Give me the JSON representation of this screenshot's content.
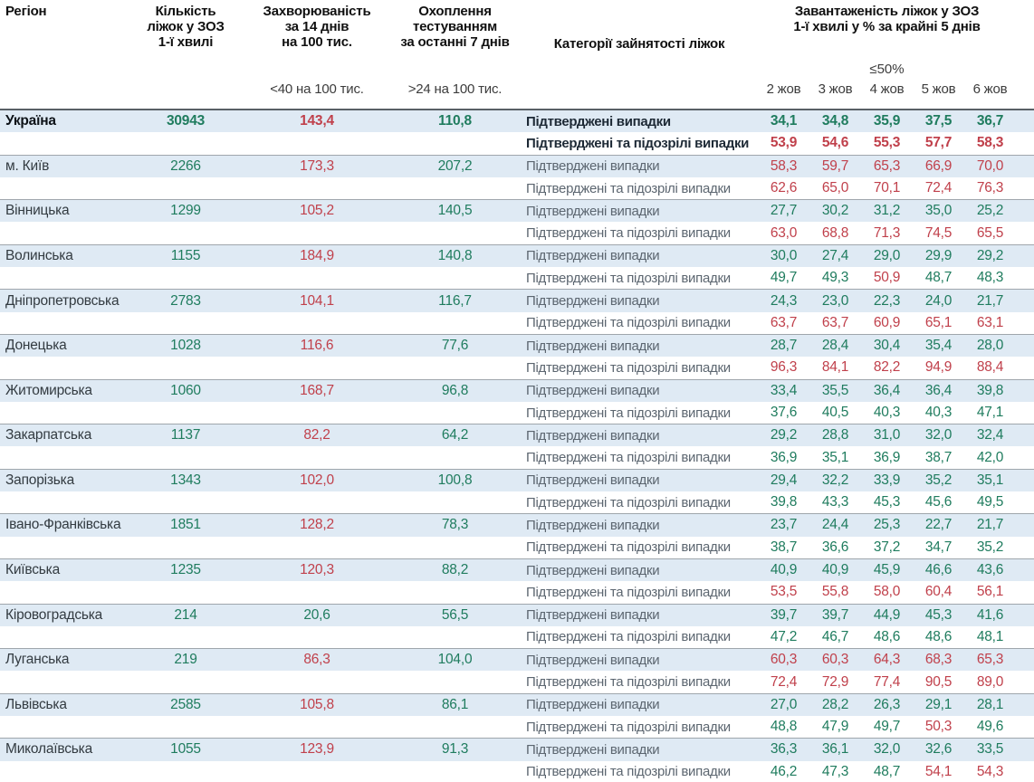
{
  "header": {
    "col_region": "Регіон",
    "col_beds_lines": [
      "Кількість",
      "ліжок у ЗОЗ",
      "1-ї хвилі"
    ],
    "col_incidence_lines": [
      "Захворюваність",
      "за 14 днів",
      "на 100 тис."
    ],
    "col_testing_lines": [
      "Охоплення",
      "тестуванням",
      "за останні 7 днів"
    ],
    "col_categories": "Категорії зайнятості ліжок",
    "col_occupancy_lines": [
      "Завантаженість ліжок у ЗОЗ",
      "1-ї хвилі у % за крайні 5 днів"
    ],
    "sub_incidence": "<40 на 100 тис.",
    "sub_testing": ">24 на 100 тис.",
    "occupancy_threshold_label": "≤50%",
    "dates": [
      "2 жов",
      "3 жов",
      "4 жов",
      "5 жов",
      "6 жов"
    ]
  },
  "category_labels": {
    "confirmed": "Підтверджені випадки",
    "suspected": "Підтверджені та підозрілі випадки"
  },
  "thresholds": {
    "incidence_green_below": 40,
    "testing_green_above": 24,
    "occupancy_red_above": 50
  },
  "colors": {
    "green": "#1f7c5e",
    "red": "#c0404b",
    "row_blue": "#dfeaf4",
    "label_gray": "#5c6670"
  },
  "rows": [
    {
      "region": "Україна",
      "bold": true,
      "beds": "30943",
      "incidence": "143,4",
      "testing": "110,8",
      "confirmed": [
        "34,1",
        "34,8",
        "35,9",
        "37,5",
        "36,7"
      ],
      "suspected": [
        "53,9",
        "54,6",
        "55,3",
        "57,7",
        "58,3"
      ]
    },
    {
      "region": "м. Київ",
      "bold": false,
      "beds": "2266",
      "incidence": "173,3",
      "testing": "207,2",
      "confirmed": [
        "58,3",
        "59,7",
        "65,3",
        "66,9",
        "70,0"
      ],
      "suspected": [
        "62,6",
        "65,0",
        "70,1",
        "72,4",
        "76,3"
      ]
    },
    {
      "region": "Вінницька",
      "bold": false,
      "beds": "1299",
      "incidence": "105,2",
      "testing": "140,5",
      "confirmed": [
        "27,7",
        "30,2",
        "31,2",
        "35,0",
        "25,2"
      ],
      "suspected": [
        "63,0",
        "68,8",
        "71,3",
        "74,5",
        "65,5"
      ]
    },
    {
      "region": "Волинська",
      "bold": false,
      "beds": "1155",
      "incidence": "184,9",
      "testing": "140,8",
      "confirmed": [
        "30,0",
        "27,4",
        "29,0",
        "29,9",
        "29,2"
      ],
      "suspected": [
        "49,7",
        "49,3",
        "50,9",
        "48,7",
        "48,3"
      ]
    },
    {
      "region": "Дніпропетровська",
      "bold": false,
      "beds": "2783",
      "incidence": "104,1",
      "testing": "116,7",
      "confirmed": [
        "24,3",
        "23,0",
        "22,3",
        "24,0",
        "21,7"
      ],
      "suspected": [
        "63,7",
        "63,7",
        "60,9",
        "65,1",
        "63,1"
      ]
    },
    {
      "region": "Донецька",
      "bold": false,
      "beds": "1028",
      "incidence": "116,6",
      "testing": "77,6",
      "confirmed": [
        "28,7",
        "28,4",
        "30,4",
        "35,4",
        "28,0"
      ],
      "suspected": [
        "96,3",
        "84,1",
        "82,2",
        "94,9",
        "88,4"
      ]
    },
    {
      "region": "Житомирська",
      "bold": false,
      "beds": "1060",
      "incidence": "168,7",
      "testing": "96,8",
      "confirmed": [
        "33,4",
        "35,5",
        "36,4",
        "36,4",
        "39,8"
      ],
      "suspected": [
        "37,6",
        "40,5",
        "40,3",
        "40,3",
        "47,1"
      ]
    },
    {
      "region": "Закарпатська",
      "bold": false,
      "beds": "1137",
      "incidence": "82,2",
      "testing": "64,2",
      "confirmed": [
        "29,2",
        "28,8",
        "31,0",
        "32,0",
        "32,4"
      ],
      "suspected": [
        "36,9",
        "35,1",
        "36,9",
        "38,7",
        "42,0"
      ]
    },
    {
      "region": "Запорізька",
      "bold": false,
      "beds": "1343",
      "incidence": "102,0",
      "testing": "100,8",
      "confirmed": [
        "29,4",
        "32,2",
        "33,9",
        "35,2",
        "35,1"
      ],
      "suspected": [
        "39,8",
        "43,3",
        "45,3",
        "45,6",
        "49,5"
      ]
    },
    {
      "region": "Івано-Франківська",
      "bold": false,
      "beds": "1851",
      "incidence": "128,2",
      "testing": "78,3",
      "confirmed": [
        "23,7",
        "24,4",
        "25,3",
        "22,7",
        "21,7"
      ],
      "suspected": [
        "38,7",
        "36,6",
        "37,2",
        "34,7",
        "35,2"
      ]
    },
    {
      "region": "Київська",
      "bold": false,
      "beds": "1235",
      "incidence": "120,3",
      "testing": "88,2",
      "confirmed": [
        "40,9",
        "40,9",
        "45,9",
        "46,6",
        "43,6"
      ],
      "suspected": [
        "53,5",
        "55,8",
        "58,0",
        "60,4",
        "56,1"
      ]
    },
    {
      "region": "Кіровоградська",
      "bold": false,
      "beds": "214",
      "incidence": "20,6",
      "testing": "56,5",
      "confirmed": [
        "39,7",
        "39,7",
        "44,9",
        "45,3",
        "41,6"
      ],
      "suspected": [
        "47,2",
        "46,7",
        "48,6",
        "48,6",
        "48,1"
      ]
    },
    {
      "region": "Луганська",
      "bold": false,
      "beds": "219",
      "incidence": "86,3",
      "testing": "104,0",
      "confirmed": [
        "60,3",
        "60,3",
        "64,3",
        "68,3",
        "65,3"
      ],
      "suspected": [
        "72,4",
        "72,9",
        "77,4",
        "90,5",
        "89,0"
      ]
    },
    {
      "region": "Львівська",
      "bold": false,
      "beds": "2585",
      "incidence": "105,8",
      "testing": "86,1",
      "confirmed": [
        "27,0",
        "28,2",
        "26,3",
        "29,1",
        "28,1"
      ],
      "suspected": [
        "48,8",
        "47,9",
        "49,7",
        "50,3",
        "49,6"
      ]
    },
    {
      "region": "Миколаївська",
      "bold": false,
      "beds": "1055",
      "incidence": "123,9",
      "testing": "91,3",
      "confirmed": [
        "36,3",
        "36,1",
        "32,0",
        "32,6",
        "33,5"
      ],
      "suspected": [
        "46,2",
        "47,3",
        "48,7",
        "54,1",
        "54,3"
      ]
    }
  ]
}
